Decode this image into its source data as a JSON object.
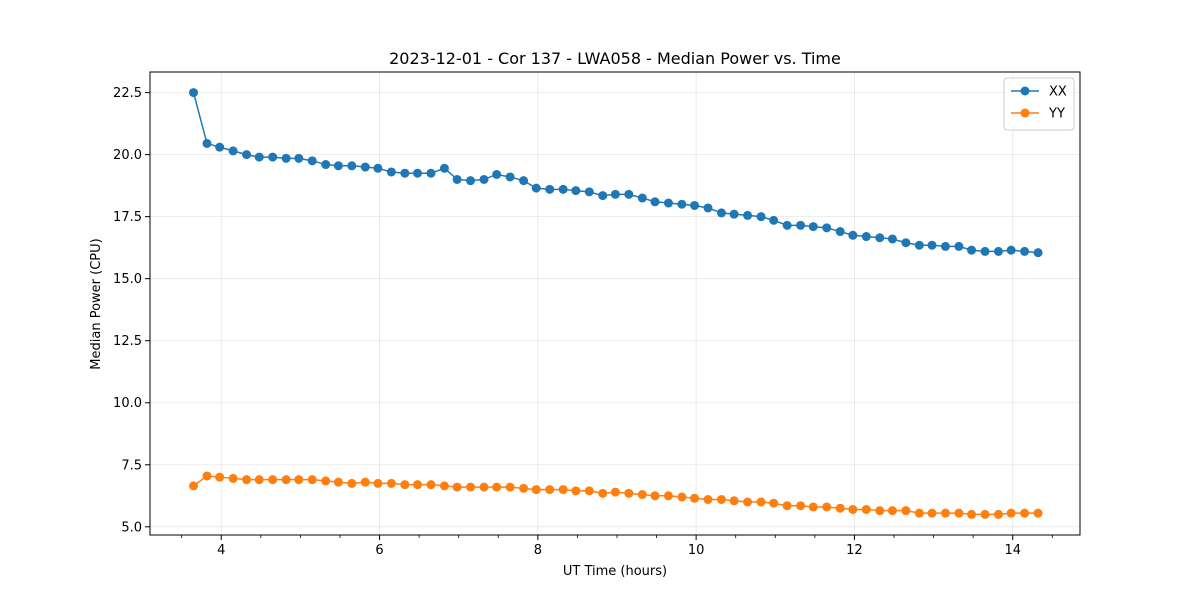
{
  "chart_data": {
    "type": "line",
    "title": "2023-12-01 - Cor 137 - LWA058 - Median Power vs. Time",
    "xlabel": "UT Time (hours)",
    "ylabel": "Median Power (CPU)",
    "xlim": [
      3.1,
      14.85
    ],
    "ylim": [
      4.67,
      23.33
    ],
    "x_ticks": [
      4,
      6,
      8,
      10,
      12,
      14
    ],
    "x_minor_step": 0.5,
    "y_ticks": [
      5.0,
      7.5,
      10.0,
      12.5,
      15.0,
      17.5,
      20.0,
      22.5
    ],
    "grid": true,
    "legend_position": "top-right",
    "x": [
      3.65,
      3.82,
      3.98,
      4.15,
      4.32,
      4.48,
      4.65,
      4.82,
      4.98,
      5.15,
      5.32,
      5.48,
      5.65,
      5.82,
      5.98,
      6.15,
      6.32,
      6.48,
      6.65,
      6.82,
      6.98,
      7.15,
      7.32,
      7.48,
      7.65,
      7.82,
      7.98,
      8.15,
      8.32,
      8.48,
      8.65,
      8.82,
      8.98,
      9.15,
      9.32,
      9.48,
      9.65,
      9.82,
      9.98,
      10.15,
      10.32,
      10.48,
      10.65,
      10.82,
      10.98,
      11.15,
      11.32,
      11.48,
      11.65,
      11.82,
      11.98,
      12.15,
      12.32,
      12.48,
      12.65,
      12.82,
      12.98,
      13.15,
      13.32,
      13.48,
      13.65,
      13.82,
      13.98,
      14.15,
      14.32
    ],
    "series": [
      {
        "name": "XX",
        "color": "#1f77b4",
        "values": [
          22.5,
          20.45,
          20.3,
          20.15,
          20.0,
          19.9,
          19.9,
          19.85,
          19.85,
          19.75,
          19.6,
          19.55,
          19.55,
          19.5,
          19.45,
          19.3,
          19.25,
          19.25,
          19.25,
          19.45,
          19.0,
          18.95,
          19.0,
          19.2,
          19.1,
          18.95,
          18.65,
          18.6,
          18.6,
          18.55,
          18.5,
          18.35,
          18.4,
          18.4,
          18.25,
          18.1,
          18.05,
          18.0,
          17.95,
          17.85,
          17.65,
          17.6,
          17.55,
          17.5,
          17.35,
          17.15,
          17.15,
          17.1,
          17.05,
          16.9,
          16.75,
          16.7,
          16.65,
          16.6,
          16.45,
          16.35,
          16.35,
          16.3,
          16.3,
          16.15,
          16.1,
          16.1,
          16.15,
          16.1,
          16.05
        ]
      },
      {
        "name": "YY",
        "color": "#ff7f0e",
        "values": [
          6.65,
          7.05,
          7.0,
          6.95,
          6.9,
          6.9,
          6.9,
          6.9,
          6.9,
          6.9,
          6.85,
          6.8,
          6.75,
          6.8,
          6.75,
          6.75,
          6.7,
          6.7,
          6.7,
          6.65,
          6.6,
          6.6,
          6.6,
          6.6,
          6.6,
          6.55,
          6.5,
          6.5,
          6.5,
          6.45,
          6.45,
          6.35,
          6.4,
          6.35,
          6.3,
          6.25,
          6.25,
          6.2,
          6.15,
          6.1,
          6.1,
          6.05,
          6.0,
          6.0,
          5.95,
          5.85,
          5.85,
          5.8,
          5.8,
          5.75,
          5.7,
          5.7,
          5.65,
          5.65,
          5.65,
          5.55,
          5.55,
          5.55,
          5.55,
          5.5,
          5.5,
          5.5,
          5.55,
          5.55,
          5.55
        ]
      }
    ]
  }
}
